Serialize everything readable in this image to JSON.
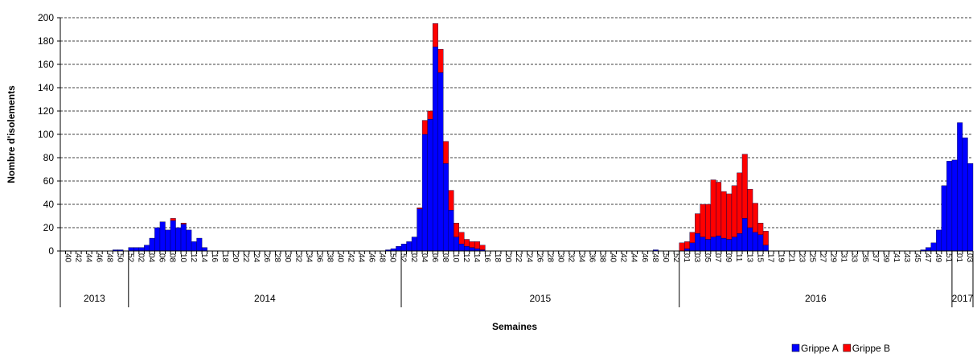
{
  "chart_data": {
    "type": "bar",
    "stacked": true,
    "y_label": "Nombre d'isolements",
    "x_label": "Semaines",
    "years": [
      "2013",
      "2014",
      "2015",
      "2016",
      "2017"
    ],
    "categories": [
      "40",
      null,
      "42",
      null,
      "44",
      null,
      "46",
      null,
      "48",
      null,
      "50",
      null,
      "52",
      null,
      "02",
      null,
      "04",
      null,
      "06",
      null,
      "08",
      null,
      "10",
      null,
      "12",
      null,
      "14",
      null,
      "16",
      null,
      "18",
      null,
      "20",
      null,
      "22",
      null,
      "24",
      null,
      "26",
      null,
      "28",
      null,
      "30",
      null,
      "32",
      null,
      "34",
      null,
      "36",
      null,
      "38",
      null,
      "40",
      null,
      "42",
      null,
      "44",
      null,
      "46",
      null,
      "48",
      null,
      "50",
      null,
      "52",
      null,
      "02",
      null,
      "04",
      null,
      "06",
      null,
      "08",
      null,
      "10",
      null,
      "12",
      null,
      "14",
      null,
      "16",
      null,
      "18",
      null,
      "20",
      null,
      "22",
      null,
      "24",
      null,
      "26",
      null,
      "28",
      null,
      "30",
      null,
      "32",
      null,
      "34",
      null,
      "36",
      null,
      "38",
      null,
      "40",
      null,
      "42",
      null,
      "44",
      null,
      "46",
      null,
      "48",
      null,
      "50",
      null,
      "52",
      null,
      "01",
      null,
      "03",
      null,
      "05",
      null,
      "07",
      null,
      "09",
      null,
      "11",
      null,
      "13",
      null,
      "15",
      null,
      "17",
      null,
      "19",
      null,
      "21",
      null,
      "23",
      null,
      "25",
      null,
      "27",
      null,
      "29",
      null,
      "31",
      null,
      "33",
      null,
      "35",
      null,
      "37",
      null,
      "39",
      null,
      "41",
      null,
      "43",
      null,
      "45",
      null,
      "47",
      null,
      "49",
      null,
      "51",
      null,
      "01",
      null,
      "03",
      null
    ],
    "series": [
      {
        "name": "Grippe A",
        "color": "#0000ff",
        "values": [
          0,
          0,
          0,
          0,
          0,
          0,
          0,
          0,
          0,
          0,
          1,
          1,
          0,
          3,
          3,
          3,
          5,
          11,
          20,
          25,
          18,
          26,
          20,
          23,
          18,
          8,
          11,
          3,
          0,
          0,
          0,
          0,
          0,
          0,
          0,
          0,
          0,
          0,
          0,
          0,
          0,
          0,
          0,
          0,
          0,
          0,
          0,
          0,
          0,
          0,
          0,
          0,
          0,
          0,
          0,
          0,
          0,
          0,
          0,
          0,
          0,
          0,
          1,
          2,
          4,
          6,
          8,
          12,
          36,
          100,
          113,
          175,
          153,
          75,
          35,
          12,
          6,
          4,
          3,
          2,
          1,
          0,
          0,
          0,
          0,
          0,
          0,
          0,
          0,
          0,
          0,
          0,
          0,
          0,
          0,
          0,
          0,
          0,
          0,
          0,
          0,
          0,
          0,
          0,
          0,
          0,
          0,
          0,
          0,
          0,
          0,
          0,
          0,
          1,
          0,
          0,
          0,
          0,
          0,
          2,
          7,
          15,
          12,
          10,
          12,
          13,
          11,
          10,
          12,
          15,
          28,
          20,
          16,
          14,
          5,
          0,
          0,
          0,
          0,
          0,
          0,
          0,
          0,
          0,
          0,
          0,
          0,
          0,
          0,
          0,
          0,
          0,
          0,
          0,
          0,
          0,
          0,
          0,
          0,
          0,
          0,
          0,
          0,
          0,
          1,
          3,
          7,
          18,
          56,
          77,
          78,
          110,
          97,
          75
        ]
      },
      {
        "name": "Grippe B",
        "color": "#ff0000",
        "values": [
          0,
          0,
          0,
          0,
          0,
          0,
          0,
          0,
          0,
          0,
          0,
          0,
          0,
          0,
          0,
          0,
          0,
          0,
          0,
          0,
          0,
          2,
          0,
          1,
          0,
          0,
          0,
          0,
          0,
          0,
          0,
          0,
          0,
          0,
          0,
          0,
          0,
          0,
          0,
          0,
          0,
          0,
          0,
          0,
          0,
          0,
          0,
          0,
          0,
          0,
          0,
          0,
          0,
          0,
          0,
          0,
          0,
          0,
          0,
          0,
          0,
          0,
          0,
          0,
          0,
          0,
          0,
          0,
          1,
          12,
          7,
          20,
          20,
          19,
          17,
          12,
          10,
          6,
          5,
          6,
          4,
          0,
          0,
          0,
          0,
          0,
          0,
          0,
          0,
          0,
          0,
          0,
          0,
          0,
          0,
          0,
          0,
          0,
          0,
          0,
          0,
          0,
          0,
          0,
          0,
          0,
          0,
          0,
          0,
          0,
          0,
          0,
          0,
          0,
          0,
          0,
          0,
          0,
          7,
          6,
          9,
          17,
          28,
          30,
          49,
          46,
          40,
          39,
          44,
          52,
          55,
          33,
          25,
          10,
          12,
          0,
          0,
          0,
          0,
          0,
          0,
          0,
          0,
          0,
          0,
          0,
          0,
          0,
          0,
          0,
          0,
          0,
          0,
          0,
          0,
          0,
          0,
          0,
          0,
          0,
          0,
          0,
          0,
          0,
          0,
          0,
          0,
          0,
          0,
          0,
          0,
          0,
          0,
          0
        ]
      }
    ],
    "ylim": [
      0,
      200
    ],
    "yticks": [
      0,
      20,
      40,
      60,
      80,
      100,
      120,
      140,
      160,
      180,
      200
    ],
    "grid": true,
    "legend": "bottom-right"
  }
}
